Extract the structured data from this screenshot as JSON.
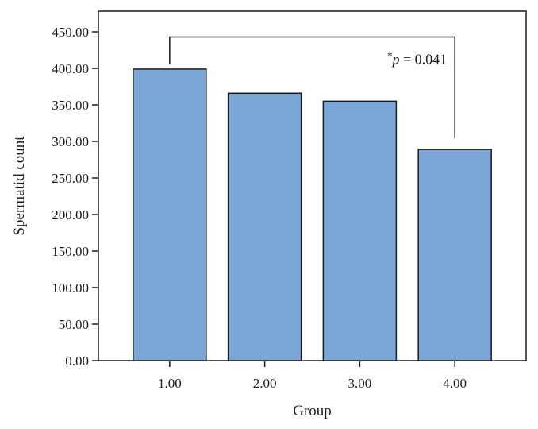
{
  "chart_data": {
    "type": "bar",
    "title": "",
    "xlabel": "Group",
    "ylabel": "Spermatid count",
    "categories": [
      "1.00",
      "2.00",
      "3.00",
      "4.00"
    ],
    "values": [
      399,
      366,
      355,
      289
    ],
    "ylim": [
      0,
      475
    ],
    "yticks": [
      "0.00",
      "50.00",
      "100.00",
      "150.00",
      "200.00",
      "250.00",
      "300.00",
      "350.00",
      "400.00",
      "450.00"
    ],
    "grid": false,
    "bar_color": "#7ba7d6",
    "bar_edge_color": "#1a1a1a",
    "annotation": {
      "text_star": "*",
      "text_p": "p",
      "text_rest": " = 0.041",
      "from_category": "1.00",
      "to_category": "4.00",
      "bracket_y": 443
    }
  }
}
